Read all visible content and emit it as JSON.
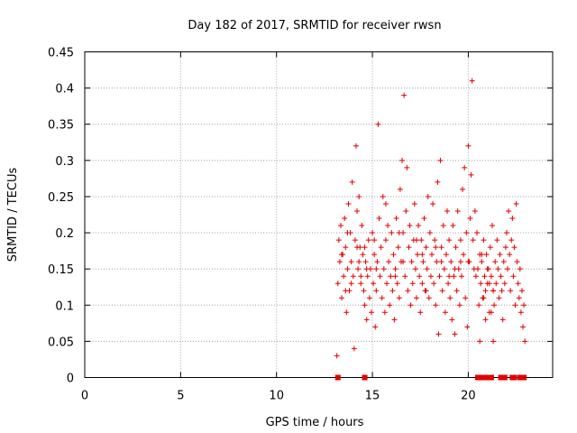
{
  "chart_data": {
    "type": "scatter",
    "title": "Day 182 of 2017, SRMTID for receiver rwsn",
    "xlabel": "GPS time / hours",
    "ylabel": "SRMTID / TECUs",
    "xlim": [
      0,
      24.4
    ],
    "ylim": [
      0,
      0.45
    ],
    "x_ticks": [
      0,
      5,
      10,
      15,
      20
    ],
    "x_tick_labels": [
      "0",
      "5",
      "10",
      "15",
      "20"
    ],
    "y_ticks": [
      0,
      0.05,
      0.1,
      0.15,
      0.2,
      0.25,
      0.3,
      0.35,
      0.4,
      0.45
    ],
    "y_tick_labels": [
      "0",
      "0.05",
      "0.1",
      "0.15",
      "0.2",
      "0.25",
      "0.3",
      "0.35",
      "0.4",
      "0.45"
    ],
    "grid": true,
    "marker": "plus",
    "series": [
      {
        "name": "SRMTID",
        "color": "#e00000",
        "points": [
          [
            13.15,
            0.03
          ],
          [
            13.2,
            0.13
          ],
          [
            13.25,
            0.19
          ],
          [
            13.3,
            0.16
          ],
          [
            13.35,
            0.21
          ],
          [
            13.4,
            0.11
          ],
          [
            13.45,
            0.17
          ],
          [
            13.5,
            0.14
          ],
          [
            13.55,
            0.22
          ],
          [
            13.6,
            0.18
          ],
          [
            13.65,
            0.09
          ],
          [
            13.7,
            0.15
          ],
          [
            13.75,
            0.24
          ],
          [
            13.8,
            0.12
          ],
          [
            13.85,
            0.2
          ],
          [
            13.9,
            0.16
          ],
          [
            13.95,
            0.27
          ],
          [
            14.0,
            0.14
          ],
          [
            14.05,
            0.04
          ],
          [
            14.1,
            0.19
          ],
          [
            14.15,
            0.32
          ],
          [
            14.2,
            0.23
          ],
          [
            14.25,
            0.15
          ],
          [
            14.3,
            0.25
          ],
          [
            14.35,
            0.18
          ],
          [
            14.4,
            0.13
          ],
          [
            14.45,
            0.21
          ],
          [
            14.5,
            0.17
          ],
          [
            14.55,
            0.12
          ],
          [
            14.6,
            0.1
          ],
          [
            14.65,
            0.16
          ],
          [
            14.7,
            0.08
          ],
          [
            14.75,
            0.14
          ],
          [
            14.8,
            0.19
          ],
          [
            14.85,
            0.11
          ],
          [
            14.9,
            0.15
          ],
          [
            14.95,
            0.09
          ],
          [
            15.0,
            0.2
          ],
          [
            15.05,
            0.13
          ],
          [
            15.1,
            0.17
          ],
          [
            15.15,
            0.07
          ],
          [
            15.2,
            0.12
          ],
          [
            15.25,
            0.16
          ],
          [
            15.3,
            0.35
          ],
          [
            15.35,
            0.22
          ],
          [
            15.4,
            0.14
          ],
          [
            15.45,
            0.18
          ],
          [
            15.5,
            0.11
          ],
          [
            15.55,
            0.25
          ],
          [
            15.6,
            0.15
          ],
          [
            15.65,
            0.09
          ],
          [
            15.7,
            0.19
          ],
          [
            15.75,
            0.13
          ],
          [
            15.8,
            0.21
          ],
          [
            15.85,
            0.16
          ],
          [
            15.9,
            0.1
          ],
          [
            15.95,
            0.14
          ],
          [
            16.0,
            0.2
          ],
          [
            16.05,
            0.12
          ],
          [
            16.1,
            0.17
          ],
          [
            16.15,
            0.08
          ],
          [
            16.2,
            0.15
          ],
          [
            16.25,
            0.22
          ],
          [
            16.3,
            0.13
          ],
          [
            16.35,
            0.18
          ],
          [
            16.4,
            0.11
          ],
          [
            16.45,
            0.26
          ],
          [
            16.5,
            0.16
          ],
          [
            16.55,
            0.3
          ],
          [
            16.6,
            0.2
          ],
          [
            16.65,
            0.39
          ],
          [
            16.7,
            0.14
          ],
          [
            16.75,
            0.23
          ],
          [
            16.8,
            0.29
          ],
          [
            16.85,
            0.12
          ],
          [
            16.9,
            0.18
          ],
          [
            16.95,
            0.21
          ],
          [
            17.0,
            0.1
          ],
          [
            17.05,
            0.16
          ],
          [
            17.1,
            0.13
          ],
          [
            17.15,
            0.19
          ],
          [
            17.2,
            0.24
          ],
          [
            17.25,
            0.15
          ],
          [
            17.3,
            0.11
          ],
          [
            17.35,
            0.17
          ],
          [
            17.4,
            0.21
          ],
          [
            17.45,
            0.14
          ],
          [
            17.5,
            0.09
          ],
          [
            17.55,
            0.19
          ],
          [
            17.6,
            0.13
          ],
          [
            17.65,
            0.16
          ],
          [
            17.7,
            0.22
          ],
          [
            17.75,
            0.12
          ],
          [
            17.8,
            0.18
          ],
          [
            17.85,
            0.15
          ],
          [
            17.9,
            0.25
          ],
          [
            17.95,
            0.11
          ],
          [
            18.0,
            0.2
          ],
          [
            18.05,
            0.14
          ],
          [
            18.1,
            0.17
          ],
          [
            18.15,
            0.24
          ],
          [
            18.2,
            0.13
          ],
          [
            18.25,
            0.19
          ],
          [
            18.3,
            0.1
          ],
          [
            18.35,
            0.16
          ],
          [
            18.4,
            0.27
          ],
          [
            18.45,
            0.06
          ],
          [
            18.5,
            0.14
          ],
          [
            18.55,
            0.3
          ],
          [
            18.6,
            0.18
          ],
          [
            18.65,
            0.12
          ],
          [
            18.7,
            0.21
          ],
          [
            18.75,
            0.15
          ],
          [
            18.8,
            0.09
          ],
          [
            18.85,
            0.17
          ],
          [
            18.9,
            0.23
          ],
          [
            18.95,
            0.13
          ],
          [
            19.0,
            0.19
          ],
          [
            19.05,
            0.11
          ],
          [
            19.1,
            0.16
          ],
          [
            19.15,
            0.08
          ],
          [
            19.2,
            0.21
          ],
          [
            19.25,
            0.14
          ],
          [
            19.3,
            0.06
          ],
          [
            19.35,
            0.18
          ],
          [
            19.4,
            0.12
          ],
          [
            19.45,
            0.23
          ],
          [
            19.5,
            0.15
          ],
          [
            19.55,
            0.1
          ],
          [
            19.6,
            0.19
          ],
          [
            19.65,
            0.14
          ],
          [
            19.7,
            0.26
          ],
          [
            19.75,
            0.17
          ],
          [
            19.8,
            0.29
          ],
          [
            19.85,
            0.11
          ],
          [
            19.9,
            0.2
          ],
          [
            19.95,
            0.07
          ],
          [
            20.0,
            0.32
          ],
          [
            20.05,
            0.16
          ],
          [
            20.1,
            0.22
          ],
          [
            20.15,
            0.28
          ],
          [
            20.2,
            0.41
          ],
          [
            20.25,
            0.19
          ],
          [
            20.3,
            0.15
          ],
          [
            20.35,
            0.23
          ],
          [
            20.4,
            0.14
          ],
          [
            20.45,
            0.2
          ],
          [
            20.5,
            0.15
          ],
          [
            20.55,
            0.1
          ],
          [
            20.6,
            0.17
          ],
          [
            20.65,
            0.13
          ],
          [
            20.7,
            0.16
          ],
          [
            20.75,
            0.11
          ],
          [
            20.8,
            0.19
          ],
          [
            20.85,
            0.14
          ],
          [
            20.9,
            0.12
          ],
          [
            20.95,
            0.17
          ],
          [
            21.0,
            0.13
          ],
          [
            21.05,
            0.15
          ],
          [
            21.1,
            0.09
          ],
          [
            21.15,
            0.18
          ],
          [
            21.2,
            0.14
          ],
          [
            21.25,
            0.21
          ],
          [
            21.3,
            0.12
          ],
          [
            21.35,
            0.1
          ],
          [
            21.4,
            0.16
          ],
          [
            21.45,
            0.13
          ],
          [
            21.5,
            0.19
          ],
          [
            21.55,
            0.15
          ],
          [
            21.6,
            0.11
          ],
          [
            21.65,
            0.17
          ],
          [
            21.7,
            0.14
          ],
          [
            21.75,
            0.12
          ],
          [
            21.8,
            0.08
          ],
          [
            21.85,
            0.16
          ],
          [
            21.9,
            0.13
          ],
          [
            21.95,
            0.18
          ],
          [
            22.0,
            0.2
          ],
          [
            22.05,
            0.15
          ],
          [
            22.1,
            0.23
          ],
          [
            22.15,
            0.17
          ],
          [
            22.2,
            0.12
          ],
          [
            22.25,
            0.19
          ],
          [
            22.3,
            0.22
          ],
          [
            22.35,
            0.14
          ],
          [
            22.4,
            0.18
          ],
          [
            22.45,
            0.1
          ],
          [
            22.5,
            0.24
          ],
          [
            22.55,
            0.16
          ],
          [
            22.6,
            0.13
          ],
          [
            22.65,
            0.11
          ],
          [
            22.7,
            0.15
          ],
          [
            22.75,
            0.09
          ],
          [
            22.8,
            0.12
          ],
          [
            22.85,
            0.07
          ],
          [
            22.9,
            0.1
          ],
          [
            22.95,
            0.05
          ],
          [
            13.4,
            0.17
          ],
          [
            14.2,
            0.18
          ],
          [
            14.7,
            0.15
          ],
          [
            15.7,
            0.24
          ],
          [
            16.4,
            0.2
          ],
          [
            17.8,
            0.12
          ],
          [
            19.0,
            0.14
          ],
          [
            20.0,
            0.16
          ],
          [
            21.3,
            0.05
          ],
          [
            20.6,
            0.05
          ],
          [
            20.7,
            0.17
          ],
          [
            20.8,
            0.11
          ],
          [
            20.9,
            0.08
          ],
          [
            21.0,
            0.15
          ],
          [
            21.1,
            0.13
          ],
          [
            21.2,
            0.09
          ],
          [
            21.3,
            0.12
          ],
          [
            13.6,
            0.12
          ],
          [
            14.3,
            0.16
          ],
          [
            15.1,
            0.19
          ],
          [
            16.2,
            0.14
          ],
          [
            17.3,
            0.19
          ],
          [
            18.3,
            0.18
          ],
          [
            19.3,
            0.15
          ],
          [
            13.7,
            0.2
          ],
          [
            14.4,
            0.14
          ],
          [
            15.2,
            0.15
          ],
          [
            16.6,
            0.16
          ],
          [
            17.6,
            0.17
          ],
          [
            18.6,
            0.16
          ],
          [
            19.6,
            0.16
          ],
          [
            13.9,
            0.13
          ],
          [
            14.6,
            0.18
          ]
        ]
      }
    ],
    "zero_points": [
      [
        13.2,
        0
      ],
      [
        14.6,
        0
      ],
      [
        20.5,
        0
      ],
      [
        20.6,
        0
      ],
      [
        20.7,
        0
      ],
      [
        20.8,
        0
      ],
      [
        20.9,
        0
      ],
      [
        21.0,
        0
      ],
      [
        21.1,
        0
      ],
      [
        21.2,
        0
      ],
      [
        21.7,
        0
      ],
      [
        21.8,
        0
      ],
      [
        21.9,
        0
      ],
      [
        22.3,
        0
      ],
      [
        22.4,
        0
      ],
      [
        22.7,
        0
      ],
      [
        22.8,
        0
      ],
      [
        22.9,
        0
      ]
    ]
  }
}
